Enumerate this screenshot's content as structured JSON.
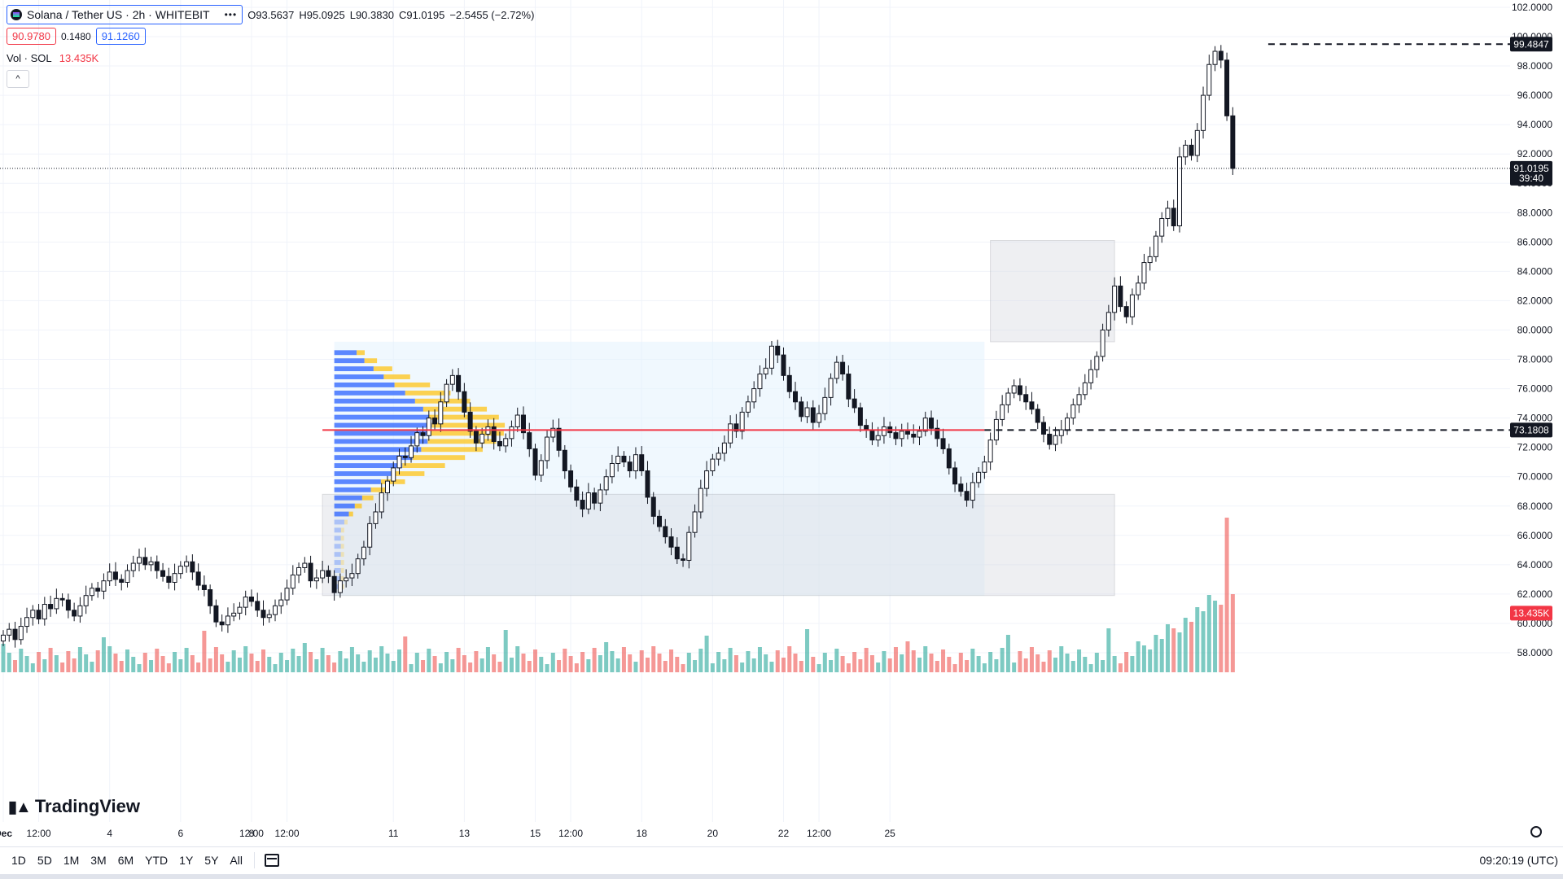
{
  "header": {
    "symbol": "Solana / Tether US · 2h · WHITEBIT",
    "menu_dots": "•••",
    "open": "O93.5637",
    "high": "H95.0925",
    "low": "L90.3830",
    "close": "C91.0195",
    "change": "−2.5455 (−2.72%)",
    "sell_price": "90.9780",
    "spread": "0.1480",
    "buy_price": "91.1260",
    "volume_label": "Vol · SOL",
    "volume_value": "13.435K",
    "collapse_label": "^"
  },
  "price_axis": {
    "ticks": [
      "102.0000",
      "100.0000",
      "98.0000",
      "96.0000",
      "94.0000",
      "92.0000",
      "90.0000",
      "88.0000",
      "86.0000",
      "84.0000",
      "82.0000",
      "80.0000",
      "78.0000",
      "76.0000",
      "74.0000",
      "72.0000",
      "70.0000",
      "68.0000",
      "66.0000",
      "64.0000",
      "62.0000",
      "60.0000",
      "58.0000"
    ],
    "last_price": "91.0195",
    "countdown": "39:40",
    "high_label": "99.4847",
    "poc_label": "73.1808",
    "volume_label": "13.435K"
  },
  "time_axis": {
    "ticks": [
      {
        "label": "Dec",
        "bar": 0
      },
      {
        "label": "12:00",
        "bar": 6
      },
      {
        "label": "4",
        "bar": 18
      },
      {
        "label": "12:00",
        "bar": 42
      },
      {
        "label": "6",
        "bar": 30
      },
      {
        "label": "8",
        "bar": 42
      },
      {
        "label": "12:00",
        "bar": 48
      },
      {
        "label": "11",
        "bar": 66
      },
      {
        "label": "13",
        "bar": 78
      },
      {
        "label": "15",
        "bar": 90
      },
      {
        "label": "12:00",
        "bar": 96
      },
      {
        "label": "18",
        "bar": 108
      },
      {
        "label": "20",
        "bar": 120
      },
      {
        "label": "22",
        "bar": 132
      },
      {
        "label": "12:00",
        "bar": 138
      },
      {
        "label": "25",
        "bar": 150
      }
    ]
  },
  "colors": {
    "up": "#26a69a",
    "down": "#ef5350",
    "candle_up_body": "#ffffff",
    "candle_down_body": "#131722",
    "poc_line": "#f23645",
    "vp_blue": "#2962ff",
    "vp_yellow": "#ffc107",
    "box_grey": "#9598a1"
  },
  "bottom_bar": {
    "ranges": [
      "1D",
      "5D",
      "1M",
      "3M",
      "6M",
      "YTD",
      "1Y",
      "5Y",
      "All"
    ],
    "clock": "09:20:19 (UTC)"
  },
  "watermark": "TradingView",
  "chart_data": {
    "type": "candlestick",
    "title": "Solana / Tether US · 2h · WHITEBIT",
    "y_range": [
      57,
      102.5
    ],
    "last_close": 91.0195,
    "session_high": 99.4847,
    "poc_level": 73.1808,
    "closes": [
      59.2,
      59.6,
      58.9,
      59.8,
      60.4,
      60.9,
      60.3,
      61.3,
      61.0,
      61.7,
      61.6,
      60.9,
      60.5,
      61.2,
      61.9,
      62.4,
      62.2,
      62.9,
      63.5,
      63.0,
      62.8,
      63.6,
      64.1,
      64.5,
      64.0,
      64.2,
      63.6,
      63.2,
      62.8,
      63.4,
      63.9,
      64.2,
      63.5,
      62.6,
      62.3,
      61.2,
      60.1,
      59.9,
      60.5,
      60.7,
      61.1,
      61.8,
      61.5,
      60.9,
      60.4,
      60.6,
      61.2,
      61.6,
      62.4,
      63.3,
      63.8,
      64.1,
      62.9,
      63.1,
      63.6,
      63.2,
      62.1,
      62.9,
      63.1,
      63.4,
      64.4,
      65.2,
      66.8,
      67.6,
      68.9,
      69.7,
      70.6,
      71.4,
      71.3,
      72.1,
      73.0,
      72.8,
      74.0,
      73.6,
      75.1,
      76.3,
      76.9,
      75.8,
      74.4,
      73.1,
      72.3,
      72.9,
      73.4,
      72.4,
      72.1,
      72.6,
      73.4,
      74.2,
      73.0,
      71.9,
      70.1,
      71.1,
      72.7,
      73.3,
      71.8,
      70.4,
      69.3,
      68.4,
      67.8,
      68.9,
      68.2,
      69.1,
      70.0,
      70.9,
      71.4,
      71.0,
      70.4,
      71.5,
      70.4,
      68.6,
      67.3,
      66.6,
      65.9,
      65.2,
      64.4,
      64.3,
      66.2,
      67.6,
      69.2,
      70.4,
      71.2,
      71.6,
      72.3,
      73.6,
      73.1,
      74.4,
      75.1,
      76.0,
      77.0,
      77.4,
      78.9,
      78.3,
      76.9,
      75.8,
      75.1,
      74.1,
      74.7,
      73.7,
      74.3,
      75.4,
      76.7,
      77.8,
      77.0,
      75.3,
      74.7,
      73.5,
      73.2,
      72.5,
      72.8,
      73.4,
      73.0,
      72.6,
      73.1,
      72.9,
      72.7,
      73.1,
      74.0,
      73.3,
      72.6,
      71.9,
      70.6,
      69.5,
      69.0,
      68.4,
      69.6,
      70.3,
      71.0,
      72.5,
      73.9,
      74.9,
      75.7,
      76.2,
      75.6,
      75.1,
      74.6,
      73.7,
      72.9,
      72.2,
      72.8,
      73.2,
      74.0,
      74.9,
      75.6,
      76.4,
      77.3,
      78.2,
      80.0,
      81.2,
      83.0,
      81.6,
      80.9,
      82.4,
      83.2,
      84.6,
      85.0,
      86.4,
      87.6,
      88.3,
      87.1,
      91.8,
      92.6,
      91.9,
      93.6,
      96.0,
      98.1,
      99.0,
      98.4,
      94.6,
      91.02
    ],
    "volume_notes": "Volume histogram at bottom; largest recent bar 13.435K"
  }
}
